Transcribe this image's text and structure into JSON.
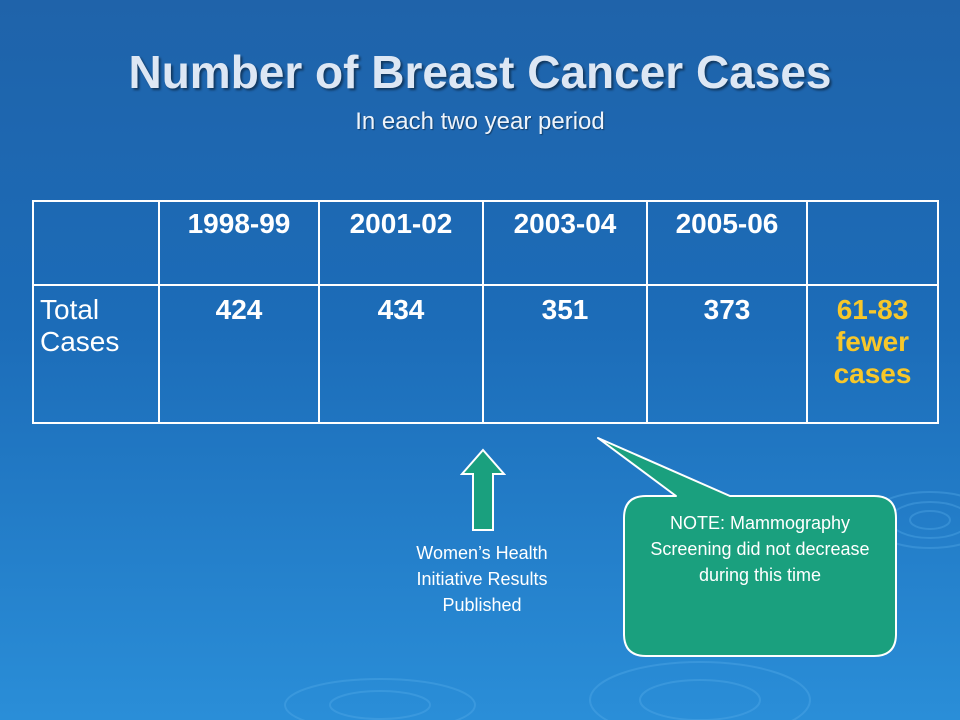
{
  "slide": {
    "title": "Number of Breast Cancer Cases",
    "subtitle": "In each two year period"
  },
  "table": {
    "headers": [
      "",
      "1998-99",
      "2001-02",
      "2003-04",
      "2005-06",
      ""
    ],
    "row": {
      "label": "Total Cases",
      "values": [
        "424",
        "434",
        "351",
        "373"
      ],
      "summary": "61-83 fewer cases"
    }
  },
  "annotations": {
    "arrow_label": "Women’s Health Initiative Results Published",
    "callout": "NOTE: Mammography Screening did not decrease during this time"
  },
  "colors": {
    "background": "#1c6cb8",
    "highlight": "#f7c72a",
    "callout_fill": "#1aa07e",
    "arrow_fill": "#1aa07e"
  }
}
